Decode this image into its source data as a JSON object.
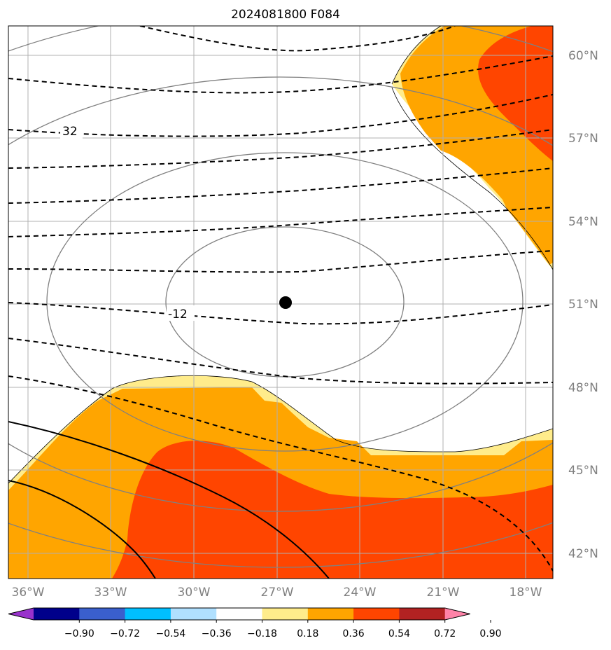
{
  "title": "2024081800 F084",
  "lat_ticks": [
    {
      "label": "60°N"
    },
    {
      "label": "57°N"
    },
    {
      "label": "54°N"
    },
    {
      "label": "51°N"
    },
    {
      "label": "48°N"
    },
    {
      "label": "45°N"
    },
    {
      "label": "42°N"
    }
  ],
  "lon_ticks": [
    {
      "label": "36°W"
    },
    {
      "label": "33°W"
    },
    {
      "label": "30°W"
    },
    {
      "label": "27°W"
    },
    {
      "label": "24°W"
    },
    {
      "label": "21°W"
    },
    {
      "label": "18°W"
    }
  ],
  "contour_labels": [
    {
      "text": "32"
    },
    {
      "text": "-12"
    }
  ],
  "colorbar": {
    "colors": [
      "#9932CC",
      "#00008B",
      "#3A5FCD",
      "#00BFFF",
      "#B0E0FF",
      "#FFFFFF",
      "#FFEC8B",
      "#FFA500",
      "#FF4500",
      "#B22222",
      "#FF83A8"
    ],
    "tick_labels": [
      "−0.90",
      "−0.72",
      "−0.54",
      "−0.36",
      "−0.18",
      "0.18",
      "0.36",
      "0.54",
      "0.72",
      "0.90"
    ]
  },
  "colors": {
    "light_yellow": "#FFEC8B",
    "orange": "#FFA500",
    "red_orange": "#FF4500",
    "gray_contour": "#808080",
    "grid": "#b0b0b0"
  }
}
